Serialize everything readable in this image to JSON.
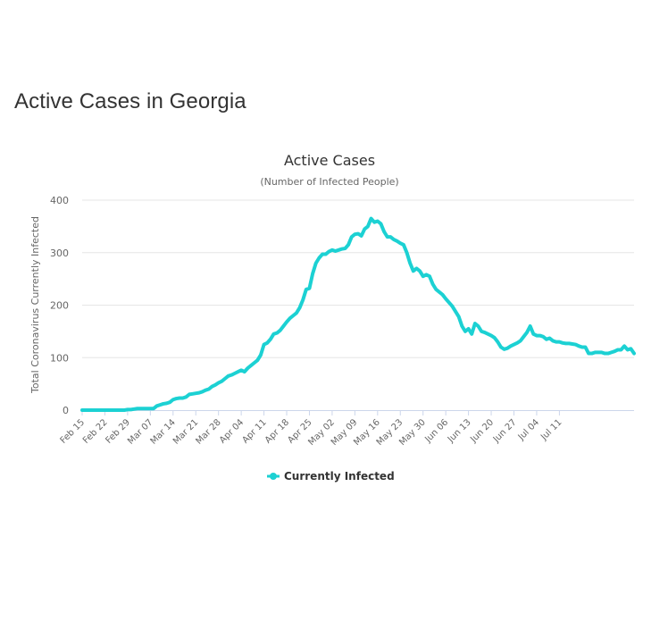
{
  "page": {
    "heading": "Active Cases in Georgia"
  },
  "colors": {
    "series": "#1cd1d3",
    "grid": "#e6e6e6",
    "axis": "#ccd6eb",
    "text": "#333333",
    "muted": "#666666"
  },
  "chart_data": {
    "type": "line",
    "title": "Active Cases",
    "subtitle": "(Number of Infected People)",
    "xlabel": "",
    "ylabel": "Total Coronavirus Currently Infected",
    "ylim": [
      0,
      400
    ],
    "yticks": [
      0,
      100,
      200,
      300,
      400
    ],
    "xticks": [
      "Feb 15",
      "Feb 22",
      "Feb 29",
      "Mar 07",
      "Mar 14",
      "Mar 21",
      "Mar 28",
      "Apr 04",
      "Apr 11",
      "Apr 18",
      "Apr 25",
      "May 02",
      "May 09",
      "May 16",
      "May 23",
      "May 30",
      "Jun 06",
      "Jun 13",
      "Jun 20",
      "Jun 27",
      "Jul 04",
      "Jul 11"
    ],
    "legend": "bottom-center",
    "series": [
      {
        "name": "Currently Infected",
        "x_start": "Feb 15",
        "day_step": 1,
        "values": [
          0,
          0,
          0,
          0,
          0,
          0,
          0,
          0,
          0,
          0,
          0,
          0,
          0,
          0,
          1,
          1,
          2,
          3,
          3,
          3,
          3,
          3,
          3,
          8,
          10,
          12,
          13,
          15,
          20,
          22,
          23,
          23,
          25,
          30,
          31,
          32,
          33,
          35,
          38,
          40,
          45,
          48,
          52,
          55,
          60,
          65,
          67,
          70,
          73,
          76,
          73,
          80,
          85,
          90,
          95,
          105,
          125,
          128,
          135,
          145,
          147,
          152,
          160,
          168,
          175,
          180,
          185,
          195,
          210,
          230,
          232,
          260,
          280,
          290,
          297,
          297,
          302,
          305,
          303,
          305,
          307,
          308,
          315,
          330,
          335,
          336,
          332,
          345,
          350,
          365,
          358,
          360,
          355,
          340,
          330,
          330,
          325,
          322,
          318,
          315,
          300,
          280,
          265,
          270,
          265,
          255,
          258,
          255,
          240,
          230,
          225,
          220,
          212,
          205,
          198,
          188,
          178,
          160,
          150,
          155,
          145,
          165,
          160,
          150,
          148,
          145,
          142,
          138,
          130,
          120,
          116,
          118,
          122,
          125,
          128,
          132,
          140,
          148,
          160,
          145,
          142,
          142,
          140,
          135,
          137,
          132,
          130,
          130,
          128,
          127,
          127,
          126,
          125,
          122,
          120,
          120,
          108,
          108,
          110,
          110,
          110,
          108,
          108,
          110,
          112,
          115,
          115,
          122,
          115,
          117,
          108
        ]
      }
    ]
  }
}
